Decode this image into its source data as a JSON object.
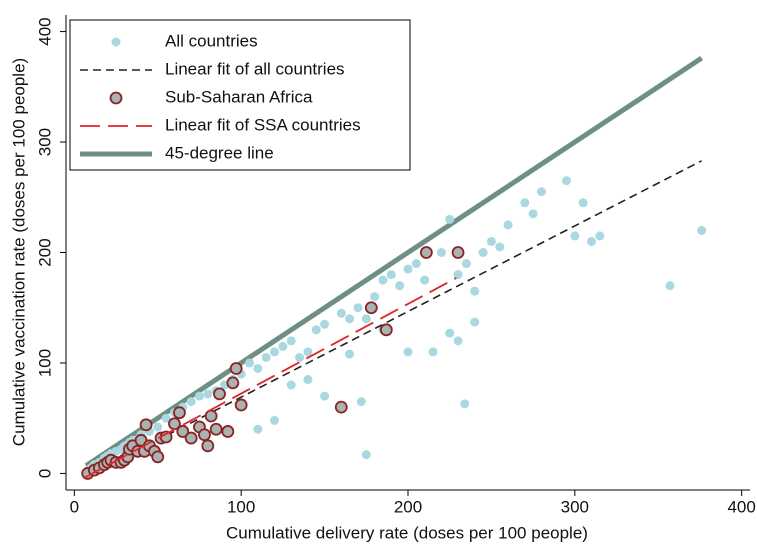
{
  "chart_data": {
    "type": "scatter",
    "x_label": "Cumulative delivery rate (doses per 100 people)",
    "y_label": "Cumulative vaccination rate (doses per 100 people)",
    "xlim": [
      -5,
      405
    ],
    "ylim": [
      -15,
      415
    ],
    "xticks": [
      0,
      100,
      200,
      300,
      400
    ],
    "yticks": [
      0,
      100,
      200,
      300,
      400
    ],
    "legend": "top-left",
    "series": [
      {
        "name": "All countries",
        "color": "#a9d8e1",
        "marker": "dot",
        "x": [
          8,
          10,
          12,
          15,
          18,
          20,
          22,
          25,
          28,
          30,
          33,
          35,
          40,
          45,
          50,
          55,
          60,
          65,
          70,
          75,
          80,
          85,
          90,
          95,
          100,
          105,
          110,
          115,
          120,
          125,
          130,
          135,
          140,
          145,
          150,
          160,
          165,
          170,
          175,
          180,
          185,
          190,
          195,
          200,
          205,
          210,
          220,
          225,
          230,
          235,
          240,
          245,
          250,
          255,
          260,
          270,
          275,
          280,
          295,
          300,
          305,
          310,
          315,
          357,
          376,
          234,
          175,
          172,
          150,
          110,
          120,
          140,
          200,
          215,
          240,
          230,
          185,
          225,
          130,
          165
        ],
        "values": [
          2,
          5,
          8,
          10,
          14,
          16,
          18,
          20,
          22,
          25,
          28,
          30,
          35,
          38,
          42,
          50,
          55,
          60,
          65,
          70,
          72,
          75,
          80,
          85,
          90,
          100,
          95,
          105,
          110,
          115,
          120,
          105,
          110,
          130,
          135,
          145,
          140,
          150,
          140,
          160,
          175,
          180,
          170,
          185,
          190,
          175,
          200,
          230,
          180,
          190,
          165,
          200,
          210,
          205,
          225,
          245,
          235,
          255,
          265,
          215,
          245,
          210,
          215,
          170,
          220,
          63,
          17,
          65,
          70,
          40,
          48,
          85,
          110,
          110,
          137,
          120,
          130,
          127,
          80,
          108
        ]
      },
      {
        "name": "Linear fit of all countries",
        "color": "#222222",
        "line": "dash",
        "x": [
          7,
          376
        ],
        "values": [
          -3,
          283
        ]
      },
      {
        "name": "Sub-Saharan Africa",
        "color": "#8b2323",
        "marker": "ring",
        "x": [
          8,
          12,
          15,
          18,
          20,
          22,
          25,
          28,
          30,
          32,
          33,
          35,
          38,
          40,
          42,
          43,
          45,
          48,
          50,
          52,
          55,
          60,
          63,
          65,
          70,
          75,
          78,
          80,
          82,
          85,
          87,
          92,
          95,
          97,
          100,
          160,
          178,
          187,
          211,
          230
        ],
        "values": [
          0,
          3,
          5,
          8,
          10,
          12,
          10,
          10,
          12,
          15,
          22,
          25,
          20,
          30,
          20,
          44,
          25,
          20,
          15,
          32,
          33,
          45,
          55,
          38,
          32,
          42,
          35,
          25,
          52,
          40,
          72,
          38,
          82,
          95,
          62,
          60,
          150,
          130,
          200,
          200
        ]
      },
      {
        "name": "Linear fit of SSA countries",
        "color": "#e0262b",
        "line": "longdash",
        "x": [
          6,
          229
        ],
        "values": [
          -4,
          177
        ]
      },
      {
        "name": "45-degree line",
        "color": "#6f8e86",
        "line": "solid",
        "x": [
          7,
          376
        ],
        "values": [
          7,
          376
        ]
      }
    ]
  }
}
